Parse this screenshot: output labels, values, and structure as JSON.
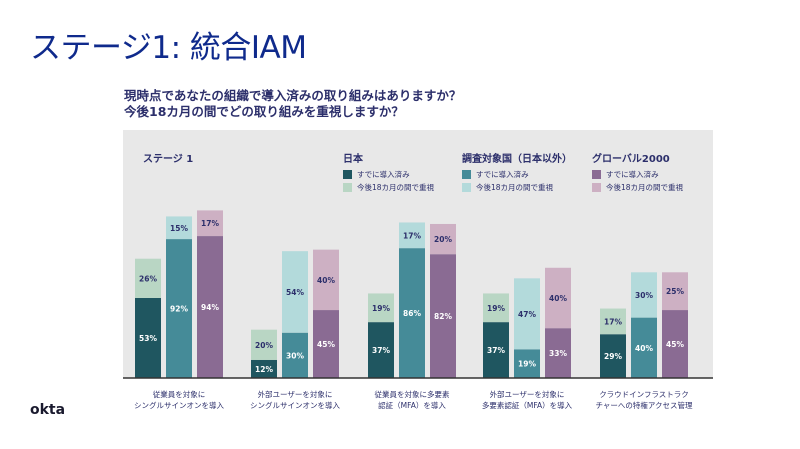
{
  "title": "ステージ1: 統合IAM",
  "question": [
    "現時点であなたの組織で導入済みの取り組みはありますか？",
    "今後18カ月の間でどの取り組みを重視しますか？"
  ],
  "logo": "okta",
  "chart_data": {
    "type": "bar",
    "stacked": true,
    "title": "ステージ 1",
    "categories": [
      [
        "従業員を対象に",
        "シングルサインオンを導入"
      ],
      [
        "外部ユーザーを対象に",
        "シングルサインオンを導入"
      ],
      [
        "従業員を対象に多要素",
        "認証（MFA）を導入"
      ],
      [
        "外部ユーザーを対象に",
        "多要素認証（MFA）を導入"
      ],
      [
        "クラウドインフラストラク",
        "チャーへの特権アクセス管理"
      ]
    ],
    "groups": [
      {
        "name": "日本",
        "colors": [
          "#1f5660",
          "#b9d6c4"
        ]
      },
      {
        "name": "調査対象国（日本以外）",
        "colors": [
          "#458b98",
          "#b3dadb"
        ]
      },
      {
        "name": "グローバル2000",
        "colors": [
          "#8a6b93",
          "#cdb0c3"
        ]
      }
    ],
    "stack_labels": [
      "すでに導入済み",
      "今後18カ月の間で重視"
    ],
    "series": [
      {
        "name": "日本",
        "implemented": [
          53,
          12,
          37,
          37,
          29
        ],
        "priority": [
          26,
          20,
          19,
          19,
          17
        ]
      },
      {
        "name": "調査対象国（日本以外）",
        "implemented": [
          92,
          30,
          86,
          19,
          40
        ],
        "priority": [
          15,
          54,
          17,
          47,
          30
        ]
      },
      {
        "name": "グローバル2000",
        "implemented": [
          94,
          45,
          82,
          33,
          45
        ],
        "priority": [
          17,
          40,
          20,
          40,
          25
        ]
      }
    ],
    "unit": "%",
    "legend": "top-right"
  }
}
